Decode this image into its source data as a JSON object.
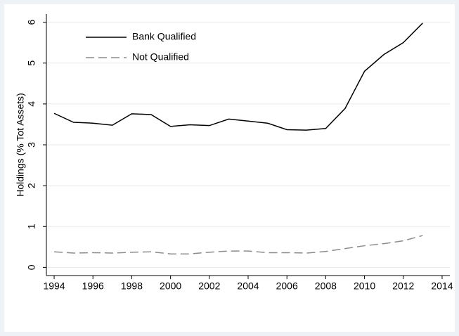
{
  "chart_data": {
    "type": "line",
    "y_label": "Holdings (% Tot Assets)",
    "x": [
      1994,
      1995,
      1996,
      1997,
      1998,
      1999,
      2000,
      2001,
      2002,
      2003,
      2004,
      2005,
      2006,
      2007,
      2008,
      2009,
      2010,
      2011,
      2012,
      2013
    ],
    "series": [
      {
        "name": "Bank Qualified",
        "color": "#000000",
        "dash": "solid",
        "values": [
          3.77,
          3.55,
          3.53,
          3.48,
          3.76,
          3.74,
          3.45,
          3.49,
          3.47,
          3.63,
          3.58,
          3.53,
          3.37,
          3.36,
          3.4,
          3.89,
          4.8,
          5.21,
          5.5,
          5.98
        ]
      },
      {
        "name": "Not Qualified",
        "color": "#8c8c8c",
        "dash": "dashed",
        "values": [
          0.38,
          0.35,
          0.36,
          0.35,
          0.37,
          0.38,
          0.33,
          0.33,
          0.37,
          0.4,
          0.4,
          0.36,
          0.36,
          0.35,
          0.39,
          0.46,
          0.53,
          0.58,
          0.65,
          0.78
        ]
      }
    ],
    "xlim": [
      1993.6,
      2014.4
    ],
    "xticks": [
      1994,
      1996,
      1998,
      2000,
      2002,
      2004,
      2006,
      2008,
      2010,
      2012,
      2014
    ],
    "ylim": [
      -0.2,
      6.2
    ],
    "yticks": [
      0,
      1,
      2,
      3,
      4,
      5,
      6
    ],
    "grid": true,
    "legend": "top-left"
  }
}
